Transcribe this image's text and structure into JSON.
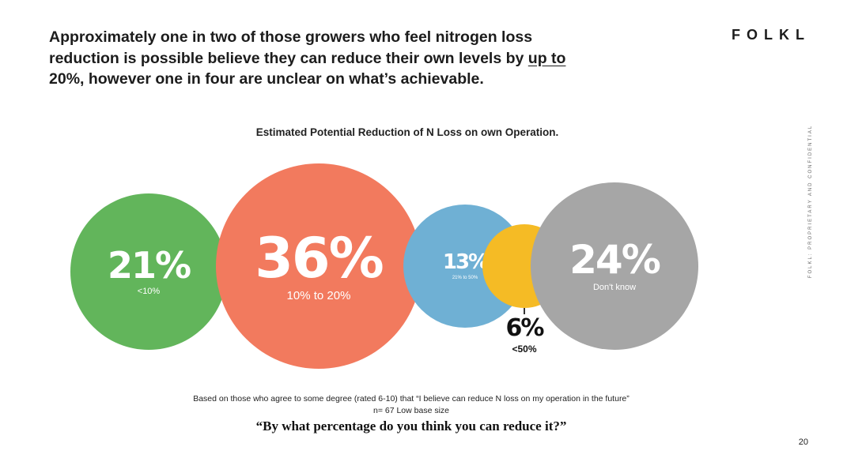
{
  "headline": {
    "part1": "Approximately one in two of those growers who feel nitrogen loss reduction is possible believe they can reduce their own levels by ",
    "underlined": "up to",
    "part2": " 20%, however one in four are unclear on what’s achievable."
  },
  "logo": "FOLKL",
  "side_text": "FOLKL: PROPRIETARY AND CONFIDENTIAL",
  "colors": {
    "green": "#62b55b",
    "orange": "#f27a5e",
    "blue": "#6fb0d4",
    "yellow": "#f5bb25",
    "grey": "#a6a6a6"
  },
  "chart_data": {
    "type": "bubble",
    "title": "Estimated Potential Reduction of N Loss on own Operation.",
    "categories": [
      "<10%",
      "10% to 20%",
      "21% to 50%",
      "<50%",
      "Don't know"
    ],
    "values": [
      21,
      36,
      13,
      6,
      24
    ],
    "display": [
      "21%",
      "36%",
      "13%",
      "6%",
      "24%"
    ],
    "unit": "%"
  },
  "notes": {
    "base": "Based on those who agree to some degree (rated 6-10) that “I believe can reduce N loss on my operation in the future”",
    "n": "n= 67 Low base size",
    "question": "“By what percentage do you think you can reduce it?”"
  },
  "page_number": "20"
}
